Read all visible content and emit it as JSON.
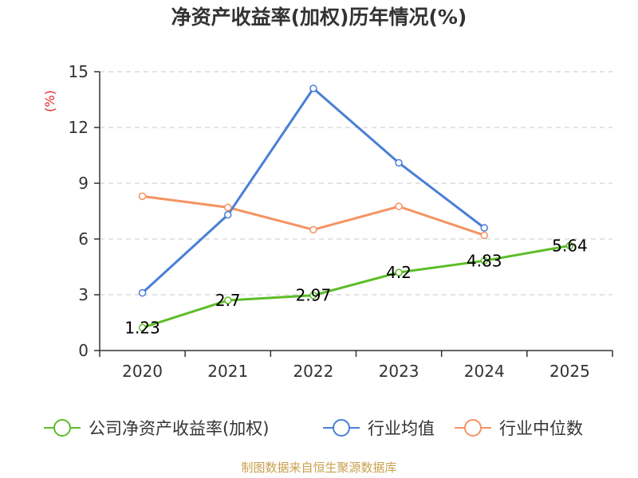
{
  "chart_data": {
    "type": "line",
    "title": "净资产收益率(加权)历年情况(%)",
    "ylabel": "(%)",
    "ylim": [
      0,
      15
    ],
    "yticks": [
      0,
      3,
      6,
      9,
      12,
      15
    ],
    "categories": [
      "2020",
      "2021",
      "2022",
      "2023",
      "2024",
      "2025"
    ],
    "grid": true,
    "legend_position": "bottom",
    "series": [
      {
        "name": "公司净资产收益率(加权)",
        "color": "#5dbd27",
        "values": [
          1.23,
          2.7,
          2.97,
          4.2,
          4.83,
          5.64
        ],
        "labels": [
          "1.23",
          "2.7",
          "2.97",
          "4.2",
          "4.83",
          "5.64"
        ]
      },
      {
        "name": "行业均值",
        "color": "#4a7fd6",
        "values": [
          3.1,
          7.3,
          14.1,
          10.1,
          6.6,
          null
        ]
      },
      {
        "name": "行业中位数",
        "color": "#f59362",
        "values": [
          8.3,
          7.7,
          6.5,
          7.75,
          6.2,
          null
        ]
      }
    ]
  },
  "footer": {
    "source": "制图数据来自恒生聚源数据库"
  }
}
